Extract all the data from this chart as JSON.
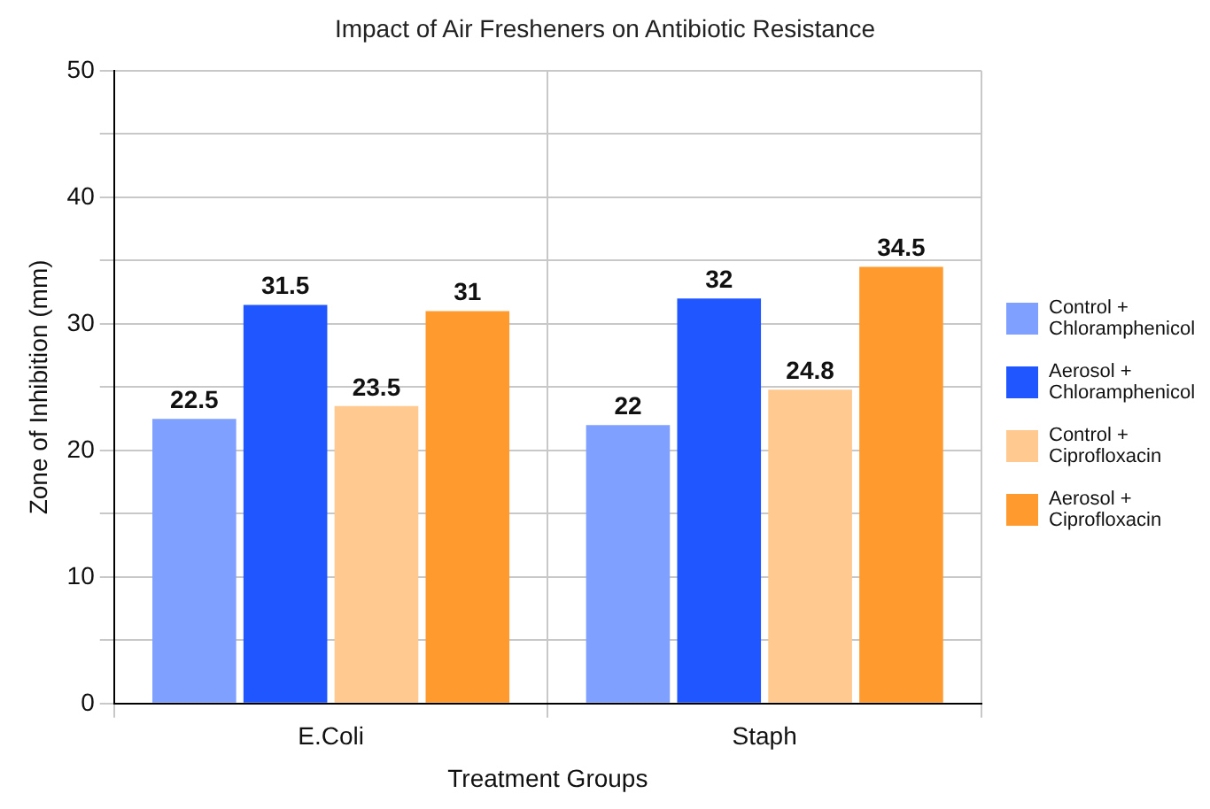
{
  "chart_data": {
    "type": "bar",
    "title": "Impact of Air Fresheners on Antibiotic Resistance",
    "xlabel": "Treatment Groups",
    "ylabel": "Zone of Inhibition (mm)",
    "categories": [
      "E.Coli",
      "Staph"
    ],
    "series": [
      {
        "name": "Control + Chloramphenicol",
        "color": "#7fa0ff",
        "values": [
          22.5,
          22
        ]
      },
      {
        "name": "Aerosol + Chloramphenicol",
        "color": "#1f56ff",
        "values": [
          31.5,
          32
        ]
      },
      {
        "name": "Control + Ciprofloxacin",
        "color": "#ffc98f",
        "values": [
          23.5,
          24.8
        ]
      },
      {
        "name": "Aerosol + Ciprofloxacin",
        "color": "#ff9a2e",
        "values": [
          31,
          34.5
        ]
      }
    ],
    "ylim": [
      0,
      50
    ],
    "yticks": [
      0,
      {
        "value": 5,
        "label": null
      },
      10,
      {
        "value": 15,
        "label": null
      },
      20,
      {
        "value": 25,
        "label": null
      },
      30,
      {
        "value": 35,
        "label": null
      },
      40,
      {
        "value": 45,
        "label": null
      },
      50
    ],
    "grid": true,
    "legend": "right",
    "data_labels": true
  }
}
